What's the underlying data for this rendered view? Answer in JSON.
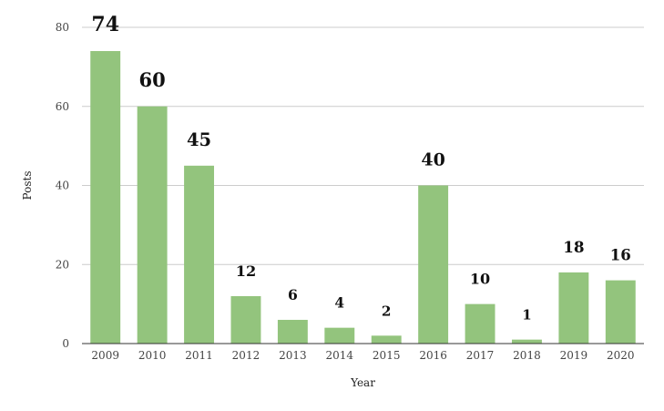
{
  "chart_data": {
    "type": "bar",
    "categories": [
      "2009",
      "2010",
      "2011",
      "2012",
      "2013",
      "2014",
      "2015",
      "2016",
      "2017",
      "2018",
      "2019",
      "2020"
    ],
    "values": [
      74,
      60,
      45,
      12,
      6,
      4,
      2,
      40,
      10,
      1,
      18,
      16
    ],
    "xlabel": "Year",
    "ylabel": "Posts",
    "ylim": [
      0,
      80
    ],
    "yticks": [
      0,
      20,
      40,
      60,
      80
    ],
    "grid": true,
    "legend": "none",
    "colors": {
      "bar": "#93c47d",
      "grid": "#cccccc",
      "axis": "#333333"
    }
  }
}
